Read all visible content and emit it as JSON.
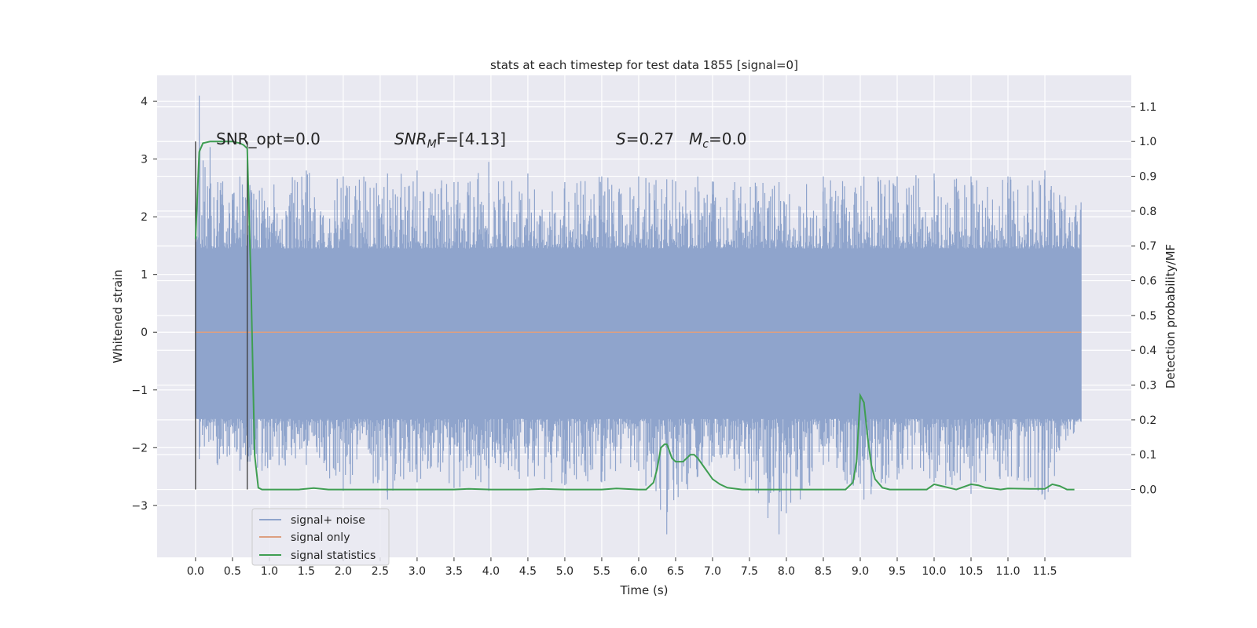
{
  "chart_data": {
    "type": "line",
    "title": "stats at each timestep for test data 1855 [signal=0]",
    "xlabel": "Time (s)",
    "ylabel_left": "Whitened strain",
    "ylabel_right": "Detection probability/MF",
    "xlim": [
      -0.52,
      12.67
    ],
    "ylim_left": [
      -3.9,
      4.45
    ],
    "ylim_right": [
      -0.195,
      1.19
    ],
    "x_ticks": [
      "0.0",
      "0.5",
      "1.0",
      "1.5",
      "2.0",
      "2.5",
      "3.0",
      "3.5",
      "4.0",
      "4.5",
      "5.0",
      "5.5",
      "6.0",
      "6.5",
      "7.0",
      "7.5",
      "8.0",
      "8.5",
      "9.0",
      "9.5",
      "10.0",
      "10.5",
      "11.0",
      "11.5"
    ],
    "x_tick_values": [
      0,
      0.5,
      1,
      1.5,
      2,
      2.5,
      3,
      3.5,
      4,
      4.5,
      5,
      5.5,
      6,
      6.5,
      7,
      7.5,
      8,
      8.5,
      9,
      9.5,
      10,
      10.5,
      11,
      11.5
    ],
    "y_ticks_left": [
      "−3",
      "−2",
      "−1",
      "0",
      "1",
      "2",
      "3",
      "4"
    ],
    "y_tick_values_left": [
      -3,
      -2,
      -1,
      0,
      1,
      2,
      3,
      4
    ],
    "y_ticks_right": [
      "0.0",
      "0.1",
      "0.2",
      "0.3",
      "0.4",
      "0.5",
      "0.6",
      "0.7",
      "0.8",
      "0.9",
      "1.0",
      "1.1"
    ],
    "y_tick_values_right": [
      0,
      0.1,
      0.2,
      0.3,
      0.4,
      0.5,
      0.6,
      0.7,
      0.8,
      0.9,
      1.0,
      1.1
    ],
    "grid": true,
    "legend_position": "lower-left",
    "annotations": {
      "snr_opt": "SNR_opt=0.0",
      "snr_mf_base": "SNR",
      "snr_mf_sub": "M",
      "snr_mf_rest": "F=[4.13]",
      "s_stat_var": "S",
      "s_stat_val": "=0.27",
      "mc_var": "M",
      "mc_sub": "c",
      "mc_val": "=0.0"
    },
    "vertical_lines_x": [
      0.0,
      0.7
    ],
    "vertical_lines_ylim_right": [
      0.0,
      1.0
    ],
    "series": [
      {
        "name": "signal+ noise",
        "color": "#8fa4cc",
        "axis": "left",
        "description_stats": {
          "x_start": 0.0,
          "x_end": 11.99,
          "peak_max": 4.1,
          "peak_min": -3.5
        },
        "x": [
          0.0,
          0.05,
          0.3,
          0.6,
          0.9,
          1.5,
          2.0,
          2.6,
          3.0,
          3.5,
          3.97,
          4.5,
          5.0,
          5.5,
          6.0,
          6.38,
          6.8,
          7.3,
          7.9,
          8.5,
          9.05,
          9.5,
          10.0,
          10.5,
          11.0,
          11.5,
          11.99
        ],
        "y": [
          1.3,
          4.1,
          2.6,
          2.7,
          2.5,
          2.8,
          2.7,
          2.75,
          2.8,
          2.6,
          2.95,
          2.75,
          2.6,
          2.7,
          2.7,
          2.65,
          2.7,
          2.6,
          2.6,
          2.7,
          2.7,
          2.7,
          2.75,
          2.7,
          2.7,
          2.8,
          2.25
        ],
        "y_low": [
          -0.9,
          -2.2,
          -2.3,
          -2.4,
          -2.4,
          -2.3,
          -2.75,
          -2.9,
          -2.6,
          -2.7,
          -2.75,
          -2.5,
          -2.65,
          -2.6,
          -2.4,
          -3.5,
          -2.5,
          -2.4,
          -3.5,
          -2.3,
          -2.9,
          -2.55,
          -2.6,
          -2.8,
          -2.5,
          -2.9,
          -1.55
        ]
      },
      {
        "name": "signal only",
        "color": "#dd9f80",
        "axis": "left",
        "x": [
          0.0,
          11.99
        ],
        "y": [
          0.0,
          0.0
        ]
      },
      {
        "name": "signal statistics",
        "color": "#3f9e52",
        "axis": "right",
        "x": [
          0.0,
          0.05,
          0.1,
          0.2,
          0.3,
          0.4,
          0.5,
          0.6,
          0.65,
          0.7,
          0.75,
          0.8,
          0.85,
          0.9,
          1.0,
          1.4,
          1.6,
          1.8,
          2.0,
          3.0,
          3.5,
          3.7,
          4.0,
          4.5,
          4.7,
          5.0,
          5.5,
          5.7,
          6.0,
          6.1,
          6.2,
          6.25,
          6.3,
          6.35,
          6.38,
          6.4,
          6.45,
          6.5,
          6.6,
          6.7,
          6.75,
          6.8,
          6.9,
          7.0,
          7.1,
          7.2,
          7.4,
          7.6,
          8.0,
          8.5,
          8.7,
          8.8,
          8.9,
          8.95,
          9.0,
          9.05,
          9.1,
          9.15,
          9.2,
          9.3,
          9.4,
          9.5,
          9.7,
          9.9,
          10.0,
          10.1,
          10.3,
          10.5,
          10.6,
          10.7,
          10.9,
          11.0,
          11.3,
          11.5,
          11.6,
          11.7,
          11.8,
          11.9
        ],
        "y": [
          0.72,
          0.97,
          0.995,
          1.0,
          1.0,
          1.0,
          1.0,
          0.995,
          0.99,
          0.98,
          0.6,
          0.1,
          0.005,
          0.0,
          0.0,
          0.0,
          0.004,
          0.0,
          0.0,
          0.0,
          0.0,
          0.002,
          0.0,
          0.0,
          0.002,
          0.0,
          0.0,
          0.003,
          0.0,
          0.0,
          0.02,
          0.06,
          0.12,
          0.13,
          0.13,
          0.12,
          0.09,
          0.08,
          0.08,
          0.1,
          0.1,
          0.09,
          0.06,
          0.03,
          0.015,
          0.005,
          0.0,
          0.0,
          0.0,
          0.0,
          0.0,
          0.0,
          0.02,
          0.08,
          0.27,
          0.25,
          0.15,
          0.07,
          0.03,
          0.005,
          0.0,
          0.0,
          0.0,
          0.0,
          0.015,
          0.01,
          0.0,
          0.015,
          0.012,
          0.005,
          0.0,
          0.003,
          0.002,
          0.002,
          0.015,
          0.01,
          0.0,
          0.0
        ]
      }
    ]
  }
}
